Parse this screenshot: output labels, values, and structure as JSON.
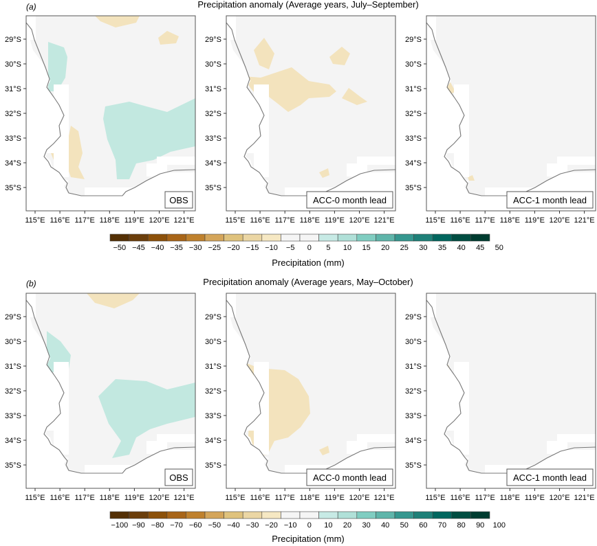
{
  "figure": {
    "panels": [
      {
        "letter": "(a)",
        "title": "Precipitation anomaly (Average years, July–September)",
        "colorbar_label": "Precipitation (mm)",
        "colorbar_ticks": [
          "−50",
          "−45",
          "−40",
          "−35",
          "−30",
          "−25",
          "−20",
          "−15",
          "−10",
          "−5",
          "0",
          "5",
          "10",
          "15",
          "20",
          "25",
          "30",
          "35",
          "40",
          "45",
          "50"
        ],
        "maps": [
          {
            "label": "OBS"
          },
          {
            "label": "ACC-0 month lead"
          },
          {
            "label": "ACC-1 month lead"
          }
        ]
      },
      {
        "letter": "(b)",
        "title": "Precipitation anomaly (Average years, May–October)",
        "colorbar_label": "Precipitation (mm)",
        "colorbar_ticks": [
          "−100",
          "−90",
          "−80",
          "−70",
          "−60",
          "−50",
          "−40",
          "−30",
          "−20",
          "−10",
          "0",
          "10",
          "20",
          "30",
          "40",
          "50",
          "60",
          "70",
          "80",
          "90",
          "100"
        ],
        "maps": [
          {
            "label": "OBS"
          },
          {
            "label": "ACC-0 month lead"
          },
          {
            "label": "ACC-1 month lead"
          }
        ]
      }
    ],
    "lon_ticks": [
      "115°E",
      "116°E",
      "117°E",
      "118°E",
      "119°E",
      "120°E",
      "121°E"
    ],
    "lat_ticks": [
      "29°S",
      "30°S",
      "31°S",
      "32°S",
      "33°S",
      "34°S",
      "35°S"
    ]
  },
  "chart_data": {
    "type": "heatmap",
    "description_units": "Precipitation anomaly (mm)",
    "colormap": [
      "#543005",
      "#6b3e0b",
      "#8c510a",
      "#a86518",
      "#bf812d",
      "#d4a55a",
      "#dfc27d",
      "#ebd6a4",
      "#f6e8c3",
      "#f5f5f5",
      "#f5f5f5",
      "#c7eae5",
      "#b0e0d8",
      "#80cdc1",
      "#5fb5aa",
      "#35978f",
      "#1e8078",
      "#01665e",
      "#004e42",
      "#003c30"
    ],
    "colors": {
      "dry_light": "#f3e3bd",
      "wet_light": "#c2e8e0",
      "neutral": "#f4f4f4",
      "coast": "#777777"
    },
    "x_range": [
      114.6,
      121.3
    ],
    "y_range": [
      -35.8,
      -28.3
    ],
    "panels": [
      {
        "title": "Precipitation anomaly (Average years, July–September)",
        "range": [
          -50,
          50
        ],
        "step": 5
      },
      {
        "title": "Precipitation anomaly (Average years, May–October)",
        "range": [
          -100,
          100
        ],
        "step": 10
      }
    ]
  }
}
